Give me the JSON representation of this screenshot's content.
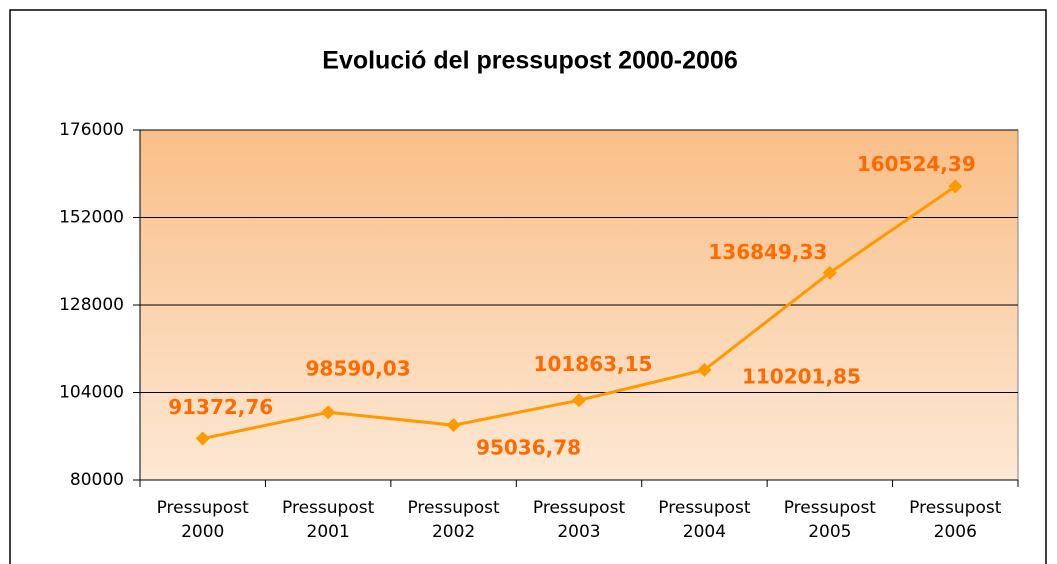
{
  "chart_data": {
    "type": "line",
    "title": "Evolució del pressupost 2000-2006",
    "categories": [
      "Pressupost 2000",
      "Pressupost 2001",
      "Pressupost 2002",
      "Pressupost 2003",
      "Pressupost 2004",
      "Pressupost 2005",
      "Pressupost 2006"
    ],
    "series": [
      {
        "name": "Pressupost",
        "color": "#ff9900",
        "values": [
          91372.76,
          98590.03,
          95036.78,
          101863.15,
          110201.85,
          136849.33,
          160524.39
        ],
        "value_labels": [
          "91372,76",
          "98590,03",
          "95036,78",
          "101863,15",
          "110201,85",
          "136849,33",
          "160524,39"
        ]
      }
    ],
    "label_color": "#ff6a00",
    "ylim": [
      80000,
      176000
    ],
    "yticks": [
      80000,
      104000,
      128000,
      152000,
      176000
    ],
    "grid": true
  }
}
